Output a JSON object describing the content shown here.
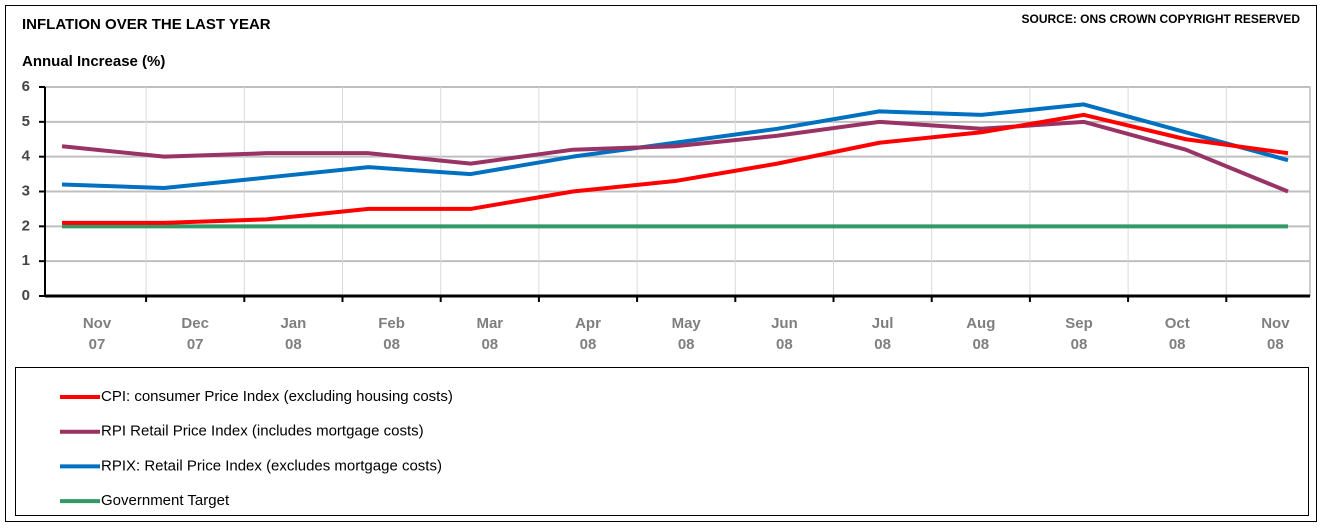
{
  "chart_data": {
    "type": "line",
    "title": "INFLATION OVER THE LAST YEAR",
    "source": "SOURCE: ONS CROWN COPYRIGHT RESERVED",
    "y_label": "Annual Increase (%)",
    "categories": [
      [
        "Nov",
        "07"
      ],
      [
        "Dec",
        "07"
      ],
      [
        "Jan",
        "08"
      ],
      [
        "Feb",
        "08"
      ],
      [
        "Mar",
        "08"
      ],
      [
        "Apr",
        "08"
      ],
      [
        "May",
        "08"
      ],
      [
        "Jun",
        "08"
      ],
      [
        "Jul",
        "08"
      ],
      [
        "Aug",
        "08"
      ],
      [
        "Sep",
        "08"
      ],
      [
        "Oct",
        "08"
      ],
      [
        "Nov",
        "08"
      ]
    ],
    "series": [
      {
        "name": "CPI: consumer Price Index (excluding housing costs)",
        "color": "#ff0000",
        "values": [
          2.1,
          2.1,
          2.2,
          2.5,
          2.5,
          3.0,
          3.3,
          3.8,
          4.4,
          4.7,
          5.2,
          4.5,
          4.1
        ]
      },
      {
        "name": "RPI Retail Price Index (includes mortgage costs)",
        "color": "#993366",
        "values": [
          4.3,
          4.0,
          4.1,
          4.1,
          3.8,
          4.2,
          4.3,
          4.6,
          5.0,
          4.8,
          5.0,
          4.2,
          3.0
        ]
      },
      {
        "name": "RPIX: Retail Price Index (excludes mortgage costs)",
        "color": "#0070c0",
        "values": [
          3.2,
          3.1,
          3.4,
          3.7,
          3.5,
          4.0,
          4.4,
          4.8,
          5.3,
          5.2,
          5.5,
          4.7,
          3.9
        ]
      },
      {
        "name": "Government Target",
        "color": "#339966",
        "values": [
          2,
          2,
          2,
          2,
          2,
          2,
          2,
          2,
          2,
          2,
          2,
          2,
          2
        ]
      }
    ],
    "ylim": [
      0,
      6
    ],
    "yticks": [
      0,
      1,
      2,
      3,
      4,
      5,
      6
    ],
    "grid": true
  }
}
